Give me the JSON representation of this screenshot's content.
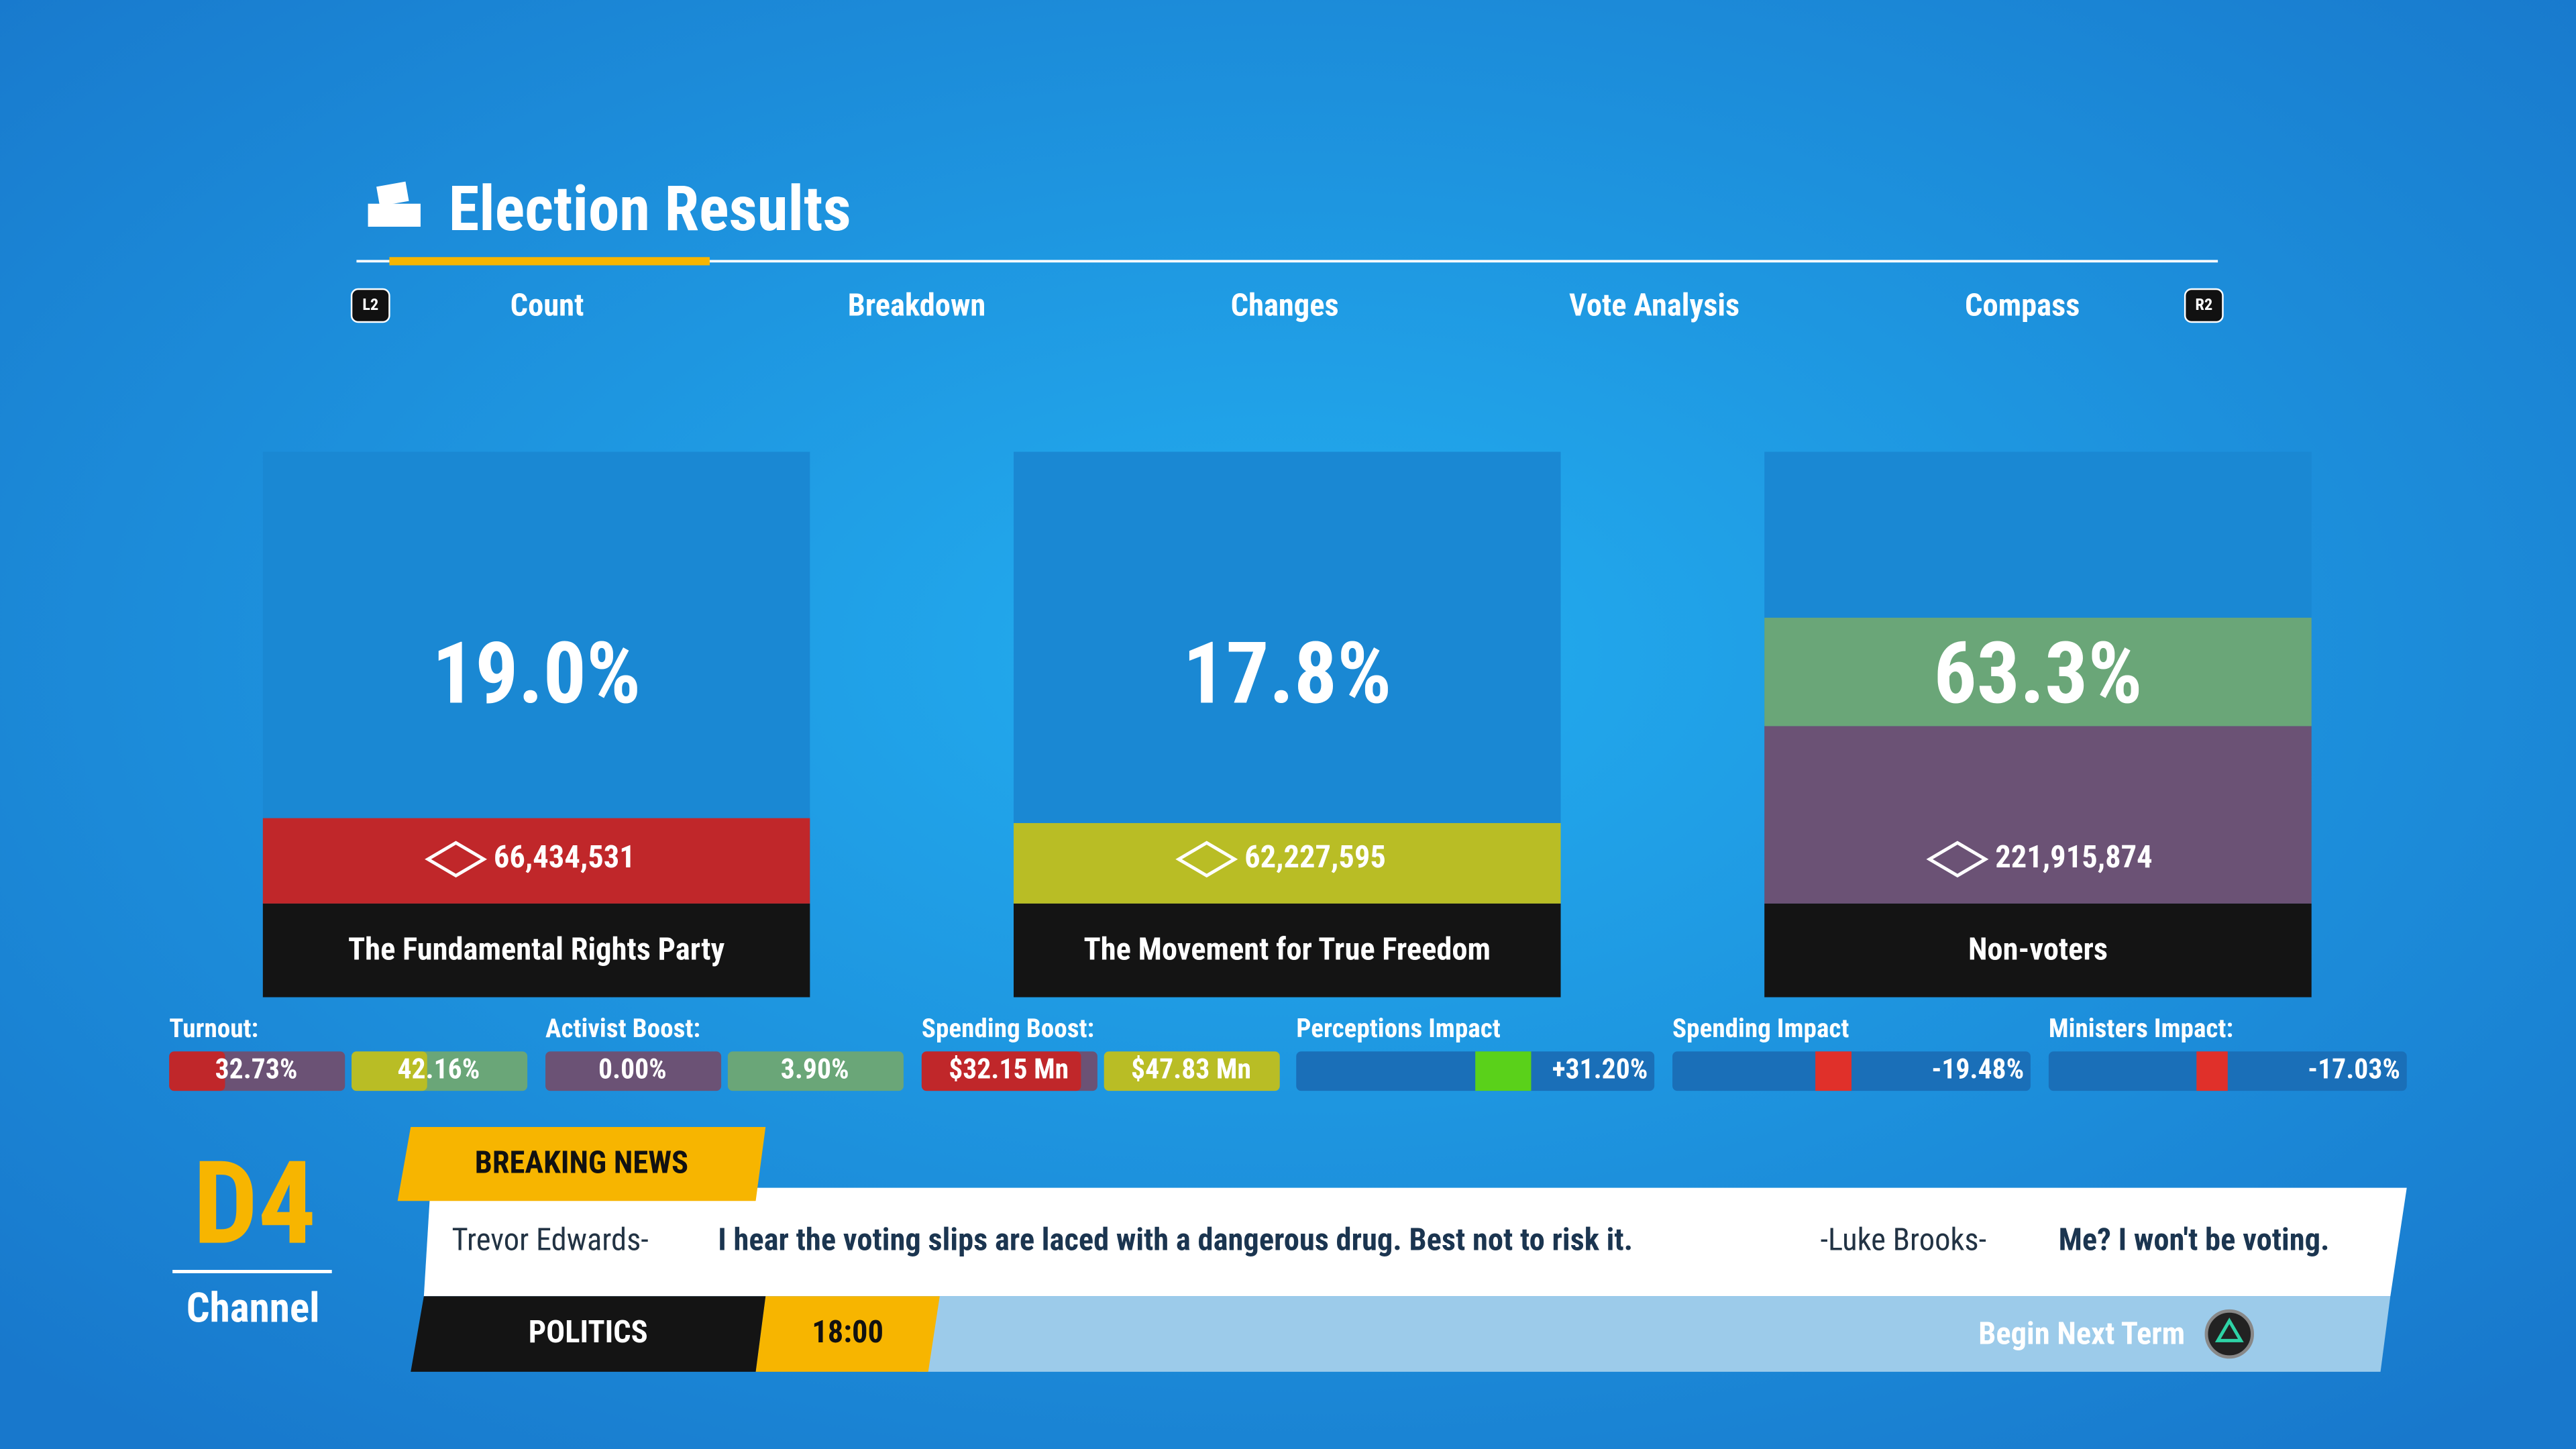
{
  "header": {
    "title": "Election Results",
    "left_button": "L2",
    "right_button": "R2",
    "tabs": [
      "Count",
      "Breakdown",
      "Changes",
      "Vote Analysis",
      "Compass"
    ]
  },
  "cards": [
    {
      "percent": "19.0%",
      "votes": "66,434,531",
      "name": "The Fundamental Rights Party"
    },
    {
      "percent": "17.8%",
      "votes": "62,227,595",
      "name": "The Movement for True Freedom"
    },
    {
      "percent": "63.3%",
      "votes": "221,915,874",
      "name": "Non-voters"
    }
  ],
  "stats": [
    {
      "label": "Turnout:",
      "values": [
        "32.73%",
        "42.16%"
      ]
    },
    {
      "label": "Activist Boost:",
      "values": [
        "0.00%",
        "3.90%"
      ]
    },
    {
      "label": "Spending Boost:",
      "values": [
        "$32.15 Mn",
        "$47.83 Mn"
      ]
    },
    {
      "label": "Perceptions Impact",
      "values": [
        "+31.20%"
      ]
    },
    {
      "label": "Spending Impact",
      "values": [
        "-19.48%"
      ]
    },
    {
      "label": "Ministers Impact:",
      "values": [
        "-17.03%"
      ]
    }
  ],
  "channel": {
    "logo": "D4",
    "name": "Channel"
  },
  "ticker": {
    "heading": "BREAKING NEWS",
    "quotes": [
      {
        "speaker": "Trevor Edwards-",
        "text": "I hear the voting slips are laced with a dangerous drug. Best not to risk it."
      },
      {
        "speaker": "-Luke Brooks-",
        "text": "Me? I won't be voting."
      }
    ],
    "section": "POLITICS",
    "time": "18:00",
    "action": "Begin Next Term"
  }
}
